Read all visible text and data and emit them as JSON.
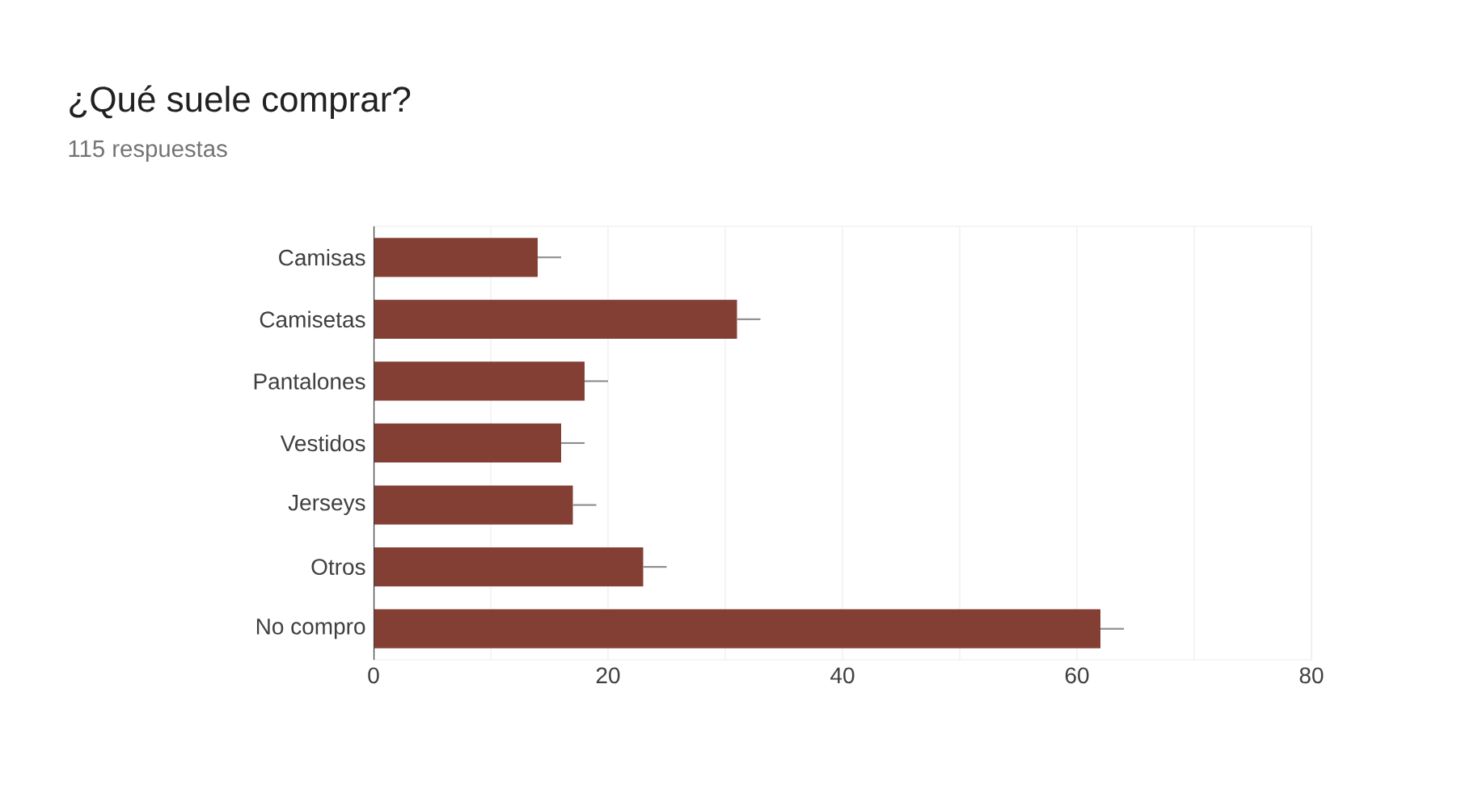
{
  "chart_data": {
    "type": "bar",
    "orientation": "horizontal",
    "title": "¿Qué suele comprar?",
    "subtitle": "115 respuestas",
    "categories": [
      "Camisas",
      "Camisetas",
      "Pantalones",
      "Vestidos",
      "Jerseys",
      "Otros",
      "No compro"
    ],
    "values": [
      14,
      31,
      18,
      16,
      17,
      23,
      62
    ],
    "errors": [
      [
        14,
        16
      ],
      [
        31,
        33
      ],
      [
        18,
        20
      ],
      [
        16,
        18
      ],
      [
        17,
        19
      ],
      [
        23,
        25
      ],
      [
        62,
        64
      ]
    ],
    "color": "#843f35",
    "xlim": [
      0,
      80
    ],
    "xticks": [
      0,
      {
        "value": 10,
        "label": null
      },
      20,
      {
        "value": 30,
        "label": null
      },
      40,
      {
        "value": 50,
        "label": null
      },
      60,
      {
        "value": 70,
        "label": null
      },
      80
    ],
    "grid": "x"
  }
}
